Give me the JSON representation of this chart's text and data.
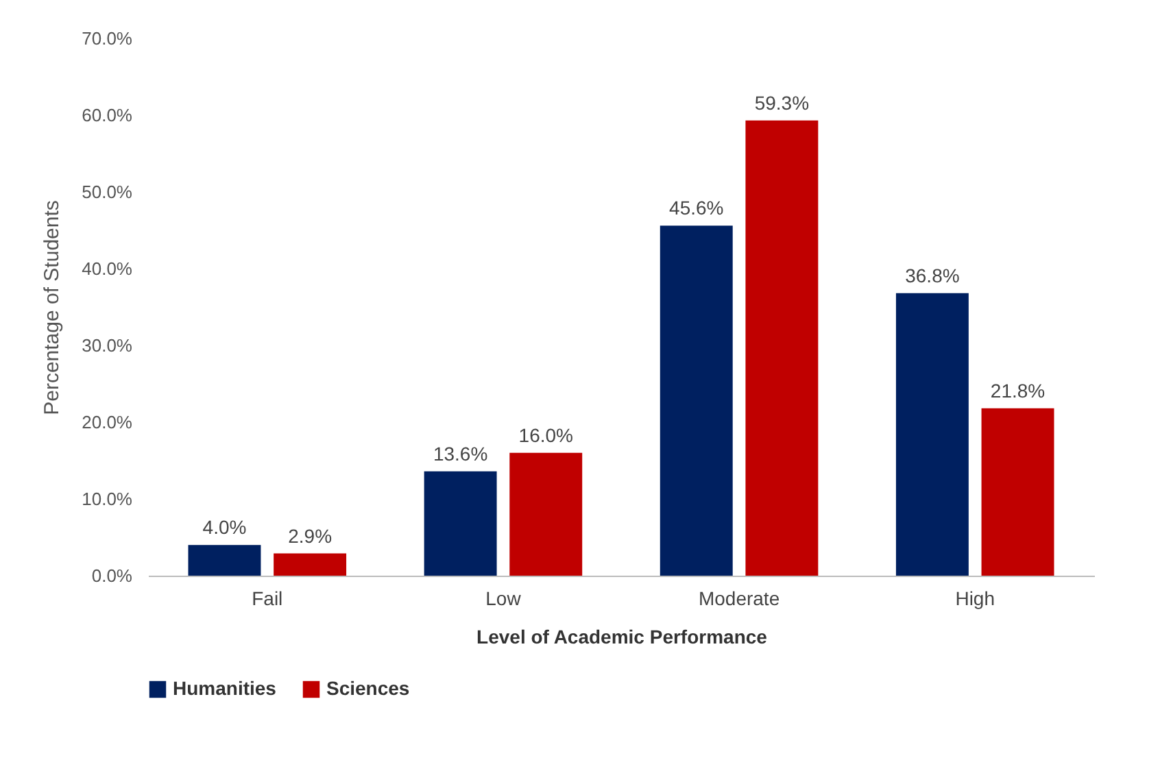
{
  "chart_data": {
    "type": "bar",
    "xlabel": "Level of Academic Performance",
    "ylabel": "Percentage of Students",
    "categories": [
      "Fail",
      "Low",
      "Moderate",
      "High"
    ],
    "series": [
      {
        "name": "Humanities",
        "color": "#002060",
        "values": [
          4.0,
          13.6,
          45.6,
          36.8
        ],
        "value_labels": [
          "4.0%",
          "13.6%",
          "45.6%",
          "36.8%"
        ]
      },
      {
        "name": "Sciences",
        "color": "#c00000",
        "values": [
          2.9,
          16.0,
          59.3,
          21.8
        ],
        "value_labels": [
          "2.9%",
          "16.0%",
          "59.3%",
          "21.8%"
        ]
      }
    ],
    "ylim": [
      0,
      70
    ],
    "yticks": [
      {
        "value": 0,
        "label": "0.0%"
      },
      {
        "value": 10,
        "label": "10.0%"
      },
      {
        "value": 20,
        "label": "20.0%"
      },
      {
        "value": 30,
        "label": "30.0%"
      },
      {
        "value": 40,
        "label": "40.0%"
      },
      {
        "value": 50,
        "label": "50.0%"
      },
      {
        "value": 60,
        "label": "60.0%"
      },
      {
        "value": 70,
        "label": "70.0%"
      }
    ],
    "legend": "bottom"
  }
}
